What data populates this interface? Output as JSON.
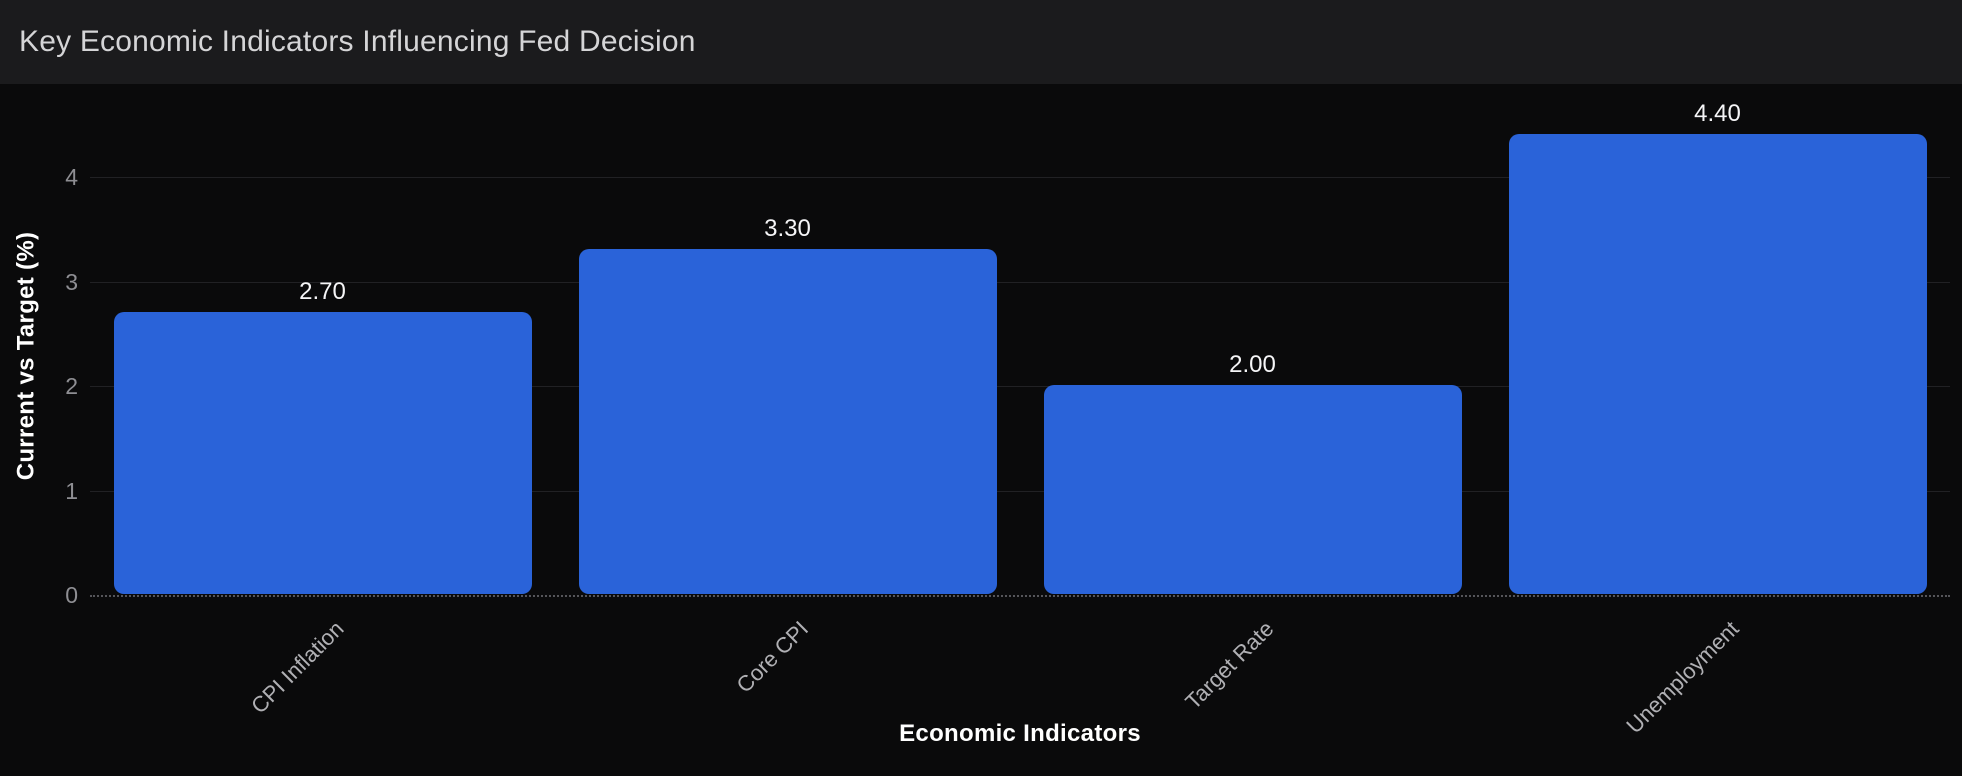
{
  "header": {
    "title": "Key Economic Indicators Influencing Fed Decision"
  },
  "chart_data": {
    "type": "bar",
    "title": "Key Economic Indicators Influencing Fed Decision",
    "categories": [
      "CPI Inflation",
      "Core CPI",
      "Target Rate",
      "Unemployment"
    ],
    "values": [
      2.7,
      3.3,
      2.0,
      4.4
    ],
    "value_labels": [
      "2.70",
      "3.30",
      "2.00",
      "4.40"
    ],
    "xlabel": "Economic Indicators",
    "ylabel": "Current vs Target (%)",
    "yticks": [
      0,
      1,
      2,
      3,
      4
    ],
    "ylim": [
      0,
      4.6
    ],
    "grid": "horizontal-faint",
    "zero_line": "dotted",
    "legend": "none",
    "bar_orientation": "vertical",
    "category_label_rotation_deg": -45
  },
  "colors": {
    "header_bg": "#1b1b1d",
    "chart_bg": "#0a0a0b",
    "bar": "#2a63d9",
    "gridline": "#212124",
    "zero_line": "#55555a",
    "tick_text": "#8e8e93",
    "category_text": "#b0b0b4",
    "value_text": "#f5f5f7",
    "axis_title_text": "#ffffff",
    "title_text": "#d5d5d7"
  }
}
